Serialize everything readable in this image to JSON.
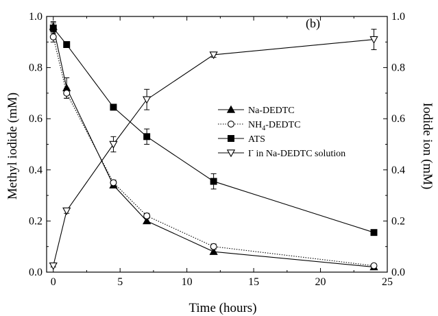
{
  "chart_data": {
    "type": "line",
    "panel_label": "(b)",
    "xlabel": "Time (hours)",
    "ylabel_left": "Methyl iodide (mM)",
    "ylabel_right": "Iodide ion (mM)",
    "xlim": [
      -0.5,
      25
    ],
    "ylim": [
      0,
      1.0
    ],
    "x_ticks": [
      0,
      5,
      10,
      15,
      20,
      25
    ],
    "x_tick_labels": [
      "0",
      "5",
      "10",
      "15",
      "20",
      "25"
    ],
    "y_ticks": [
      0.0,
      0.2,
      0.4,
      0.6,
      0.8,
      1.0
    ],
    "y_tick_labels": [
      "0.0",
      "0.2",
      "0.4",
      "0.6",
      "0.8",
      "1.0"
    ],
    "grid": false,
    "legend_position": "center-right",
    "series": [
      {
        "name": "Na-DEDTC",
        "name_sub": "",
        "marker": "triangle-up-filled",
        "line": "solid",
        "x": [
          0,
          1,
          4.5,
          7,
          12,
          24
        ],
        "y": [
          0.96,
          0.72,
          0.34,
          0.2,
          0.08,
          0.02
        ],
        "err": [
          0.02,
          0.04,
          0.01,
          0.01,
          0.01,
          0.005
        ]
      },
      {
        "name": "NH",
        "name_sub": "4",
        "name_suffix": "-DEDTC",
        "marker": "circle-open",
        "line": "dotted",
        "x": [
          0,
          1,
          4.5,
          7,
          12,
          24
        ],
        "y": [
          0.92,
          0.7,
          0.35,
          0.22,
          0.1,
          0.025
        ],
        "err": [
          0.02,
          0.02,
          0.01,
          0.01,
          0.01,
          0.005
        ]
      },
      {
        "name": "ATS",
        "name_sub": "",
        "marker": "square-filled",
        "line": "solid",
        "x": [
          0,
          1,
          4.5,
          7,
          12,
          24
        ],
        "y": [
          0.955,
          0.89,
          0.645,
          0.53,
          0.355,
          0.155
        ],
        "err": [
          0.02,
          0.0,
          0.0,
          0.03,
          0.03,
          0.0
        ]
      },
      {
        "name": "I",
        "name_sup": "-",
        "name_suffix": " in Na-DEDTC solution",
        "marker": "triangle-down-open",
        "line": "solid",
        "x": [
          0,
          1,
          4.5,
          7,
          12,
          24
        ],
        "y": [
          0.025,
          0.24,
          0.5,
          0.675,
          0.85,
          0.91
        ],
        "err": [
          0.005,
          0.01,
          0.03,
          0.04,
          0.01,
          0.04
        ]
      }
    ]
  }
}
